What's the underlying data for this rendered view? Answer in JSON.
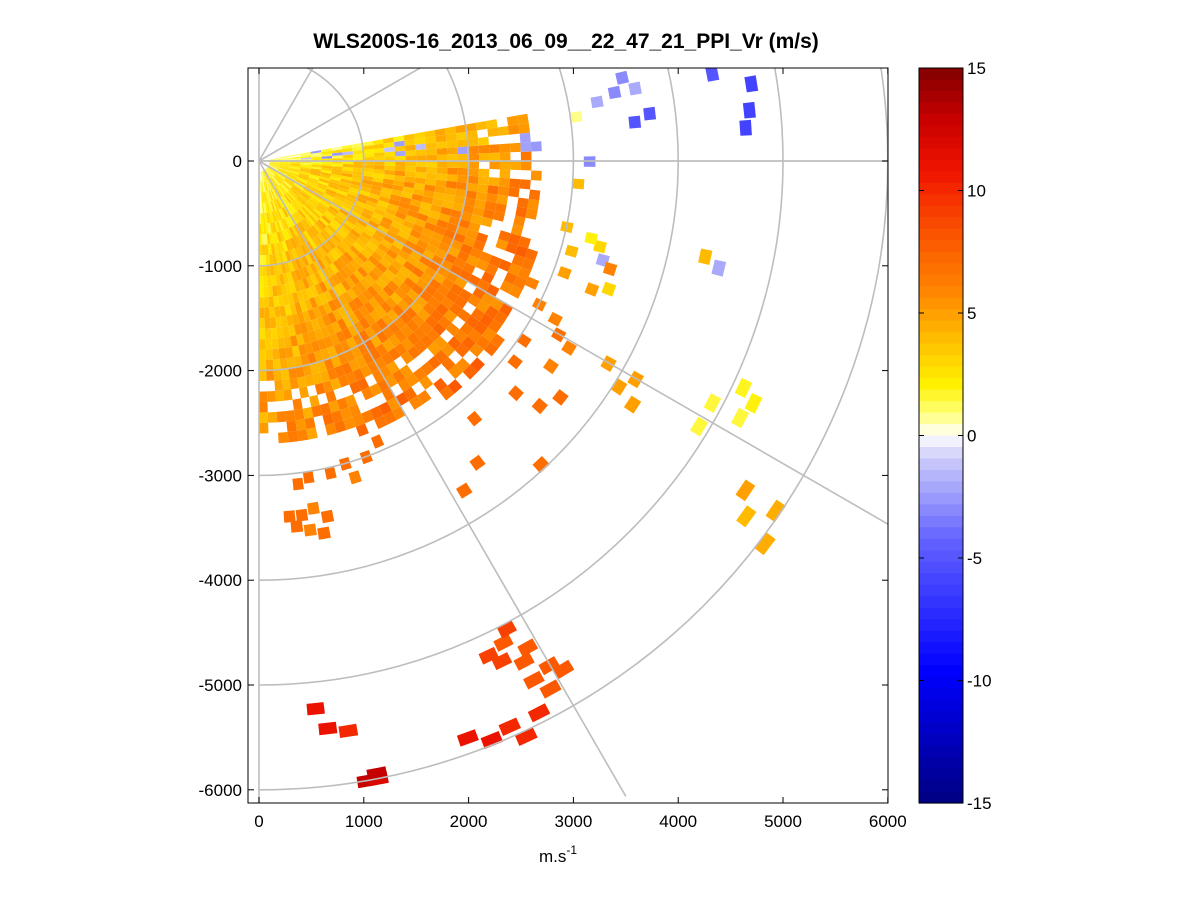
{
  "chart_data": {
    "type": "heatmap",
    "subtype": "ppi-polar-scan",
    "title": "WLS200S-16_2013_06_09__22_47_21_PPI_Vr (m/s)",
    "xlabel": "m.s",
    "xlabel_sup": "-1",
    "ylabel": "",
    "xlim": [
      -100,
      6000
    ],
    "ylim": [
      -6100,
      920
    ],
    "x_ticks": [
      0,
      1000,
      2000,
      3000,
      4000,
      5000,
      6000
    ],
    "x_tick_labels": [
      "0",
      "1000",
      "2000",
      "3000",
      "4000",
      "5000",
      "6000"
    ],
    "y_ticks": [
      0,
      -1000,
      -2000,
      -3000,
      -4000,
      -5000,
      -6000
    ],
    "y_tick_labels": [
      "0",
      "-1000",
      "-2000",
      "-3000",
      "-4000",
      "-5000",
      "-6000"
    ],
    "polar_grid": {
      "range_rings_m": [
        1000,
        2000,
        3000,
        4000,
        5000,
        6000
      ],
      "spokes_deg": [
        -60,
        -30,
        0,
        30,
        60,
        90
      ]
    },
    "colorbar": {
      "label": "Vr (m/s)",
      "min": -15,
      "max": 15,
      "ticks": [
        15,
        10,
        5,
        0,
        -5,
        -10,
        -15
      ],
      "tick_labels": [
        "15",
        "10",
        "5",
        "0",
        "-5",
        "-10",
        "-15"
      ]
    },
    "sector_fill": {
      "inner_az_deg": [
        -90,
        10
      ],
      "inner_range_m": [
        100,
        2900
      ],
      "value_near": 2,
      "value_far": 7
    },
    "cells": [
      [
        3000,
        7,
        0.8
      ],
      [
        3220,
        9,
        -2
      ],
      [
        3500,
        12,
        -3
      ],
      [
        3600,
        10,
        -2
      ],
      [
        3400,
        10,
        -3
      ],
      [
        3700,
        6,
        -5
      ],
      [
        3550,
        5,
        -5
      ],
      [
        4350,
        10,
        -5
      ],
      [
        4750,
        19,
        -7
      ],
      [
        4850,
        18,
        -8
      ],
      [
        4850,
        21,
        -7
      ],
      [
        5000,
        20,
        -9
      ],
      [
        4800,
        27,
        -6
      ],
      [
        4800,
        16,
        -7
      ],
      [
        4700,
        8,
        -6
      ],
      [
        4650,
        5,
        -6
      ],
      [
        4600,
        3,
        -6
      ],
      [
        3100,
        -1,
        -3
      ],
      [
        3000,
        -5,
        4
      ],
      [
        2950,
        -13,
        4
      ],
      [
        3050,
        -17,
        4
      ],
      [
        3050,
        -21,
        5
      ],
      [
        3300,
        -15,
        3
      ],
      [
        3360,
        -17,
        -2
      ],
      [
        3450,
        -18,
        6
      ],
      [
        3200,
        -14,
        2
      ],
      [
        3500,
        -21,
        3
      ],
      [
        3350,
        -22,
        5
      ],
      [
        4300,
        -13,
        4
      ],
      [
        4450,
        -14,
        -2
      ],
      [
        2800,
        -25,
        6
      ],
      [
        2950,
        -28,
        6
      ],
      [
        3150,
        -29,
        6
      ],
      [
        3250,
        -31,
        7
      ],
      [
        3400,
        -32,
        6
      ],
      [
        3350,
        -36,
        6
      ],
      [
        3800,
        -31,
        5
      ],
      [
        4100,
        -31,
        5
      ],
      [
        4000,
        -33,
        5
      ],
      [
        4200,
        -34,
        5
      ],
      [
        3000,
        -35,
        7
      ],
      [
        3050,
        -39,
        7
      ],
      [
        3250,
        -43,
        7
      ],
      [
        3600,
        -39,
        7
      ],
      [
        3500,
        -42,
        7
      ],
      [
        3900,
        -48,
        7
      ],
      [
        4850,
        -29,
        1.5
      ],
      [
        5050,
        -26,
        1.8
      ],
      [
        4850,
        -32,
        1.5
      ],
      [
        5200,
        -27,
        2
      ],
      [
        5150,
        -29,
        1.5
      ],
      [
        5550,
        -35,
        5
      ],
      [
        5900,
        -35,
        4.5
      ],
      [
        5700,
        -37,
        4
      ],
      [
        6000,
        -38,
        4.5
      ],
      [
        3150,
        -51,
        7
      ],
      [
        3500,
        -55,
        7
      ],
      [
        3650,
        -59,
        7
      ],
      [
        3000,
        -82,
        7
      ],
      [
        3050,
        -84,
        7
      ],
      [
        3350,
        -84,
        7
      ],
      [
        3400,
        -80,
        7
      ],
      [
        3500,
        -83,
        6
      ],
      [
        3550,
        -81,
        7
      ],
      [
        3450,
        -85,
        7
      ],
      [
        3350,
        -86,
        7
      ],
      [
        3300,
        -82,
        6
      ],
      [
        3000,
        -78,
        7
      ],
      [
        2950,
        -75,
        7
      ],
      [
        2850,
        -68,
        7
      ],
      [
        2950,
        -71,
        7
      ],
      [
        3100,
        -74,
        6
      ],
      [
        5100,
        -64,
        8
      ],
      [
        5000,
        -63,
        9
      ],
      [
        5250,
        -62,
        8
      ],
      [
        5500,
        -61,
        8
      ],
      [
        5550,
        -63,
        8
      ],
      [
        5250,
        -65,
        9
      ],
      [
        5350,
        -63,
        8
      ],
      [
        5150,
        -66,
        9
      ],
      [
        5600,
        -60,
        8
      ],
      [
        5700,
        -62,
        8
      ],
      [
        5850,
        -64,
        10
      ],
      [
        5200,
        -85,
        11
      ],
      [
        5400,
        -84,
        11
      ],
      [
        5450,
        -82,
        10
      ],
      [
        5800,
        -71,
        11
      ],
      [
        5900,
        -69,
        11
      ],
      [
        5850,
        -67,
        10
      ],
      [
        6000,
        -66,
        10
      ],
      [
        5950,
        -81,
        13
      ],
      [
        5950,
        -80,
        12
      ],
      [
        5900,
        -80,
        13
      ]
    ]
  }
}
